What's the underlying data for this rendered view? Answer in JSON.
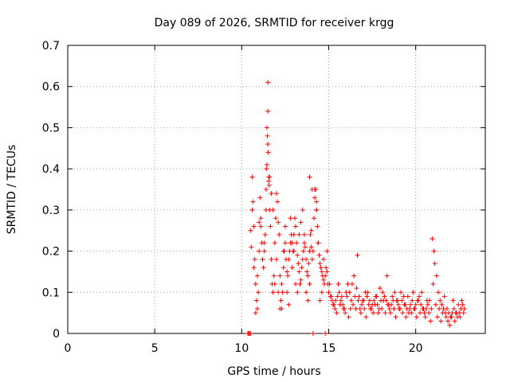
{
  "chart_data": {
    "type": "scatter",
    "title": "Day 089 of 2026, SRMTID for receiver krgg",
    "xlabel": "GPS time / hours",
    "ylabel": "SRMTID / TECUs",
    "xlim": [
      0,
      24
    ],
    "ylim": [
      0,
      0.7
    ],
    "xticks": [
      0,
      5,
      10,
      15,
      20
    ],
    "yticks": [
      0,
      0.1,
      0.2,
      0.3,
      0.4,
      0.5,
      0.6,
      0.7
    ],
    "xtick_labels": [
      "0",
      "5",
      "10",
      "15",
      "20"
    ],
    "ytick_labels": [
      "0",
      "0.1",
      "0.2",
      "0.3",
      "0.4",
      "0.5",
      "0.6",
      "0.7"
    ],
    "grid": true,
    "marker": "+",
    "color": "#ff0000",
    "series": [
      {
        "name": "SRMTID",
        "x": [
          10.35,
          10.4,
          10.45,
          10.5,
          14.1,
          14.8,
          10.5,
          10.55,
          10.6,
          10.65,
          10.7,
          10.75,
          10.8,
          10.85,
          10.9,
          10.95,
          11.0,
          11.05,
          11.1,
          11.15,
          11.2,
          11.25,
          11.3,
          11.35,
          11.4,
          11.45,
          11.5,
          11.55,
          11.6,
          11.65,
          11.7,
          11.75,
          11.8,
          11.85,
          11.9,
          11.95,
          12.0,
          12.05,
          12.1,
          12.15,
          12.2,
          12.25,
          12.3,
          12.35,
          12.4,
          12.45,
          12.5,
          12.55,
          12.6,
          12.65,
          12.7,
          12.75,
          12.8,
          12.85,
          12.9,
          12.95,
          13.0,
          13.05,
          13.1,
          13.15,
          13.2,
          13.25,
          13.3,
          13.35,
          13.4,
          13.45,
          13.5,
          13.55,
          13.6,
          13.65,
          13.7,
          13.75,
          13.8,
          13.85,
          13.9,
          13.95,
          14.0,
          14.05,
          14.1,
          14.15,
          14.2,
          14.25,
          14.3,
          14.35,
          14.4,
          14.45,
          14.5,
          14.55,
          14.6,
          14.65,
          14.7,
          14.75,
          14.8,
          14.85,
          14.9,
          14.95,
          15.0,
          15.1,
          15.2,
          15.3,
          15.4,
          15.5,
          15.6,
          15.7,
          15.8,
          15.9,
          16.0,
          16.1,
          16.2,
          16.3,
          16.4,
          16.5,
          16.6,
          16.7,
          16.8,
          16.9,
          17.0,
          17.1,
          17.2,
          17.3,
          17.4,
          17.5,
          17.6,
          17.7,
          17.8,
          17.9,
          18.0,
          18.1,
          18.2,
          18.3,
          18.4,
          18.5,
          18.6,
          18.7,
          18.8,
          18.9,
          19.0,
          19.1,
          19.2,
          19.3,
          19.4,
          19.5,
          19.6,
          19.7,
          19.8,
          19.9,
          20.0,
          20.1,
          20.2,
          20.3,
          20.4,
          20.5,
          20.6,
          20.7,
          20.8,
          20.9,
          21.0,
          21.1,
          21.2,
          21.3,
          21.4,
          21.5,
          21.6,
          21.7,
          21.8,
          21.9,
          22.0,
          22.1,
          22.2,
          22.3,
          22.4,
          22.5,
          22.6,
          22.7,
          22.8,
          10.6,
          10.7,
          10.8,
          10.9,
          11.0,
          11.1,
          11.2,
          11.3,
          11.4,
          11.5,
          11.6,
          11.7,
          11.8,
          11.9,
          12.0,
          12.1,
          12.2,
          12.3,
          12.4,
          12.5,
          12.6,
          12.7,
          12.8,
          12.9,
          13.0,
          13.1,
          13.2,
          13.3,
          13.4,
          13.5,
          13.6,
          13.7,
          13.8,
          13.9,
          14.0,
          14.2,
          14.3,
          14.4,
          14.5,
          14.6,
          14.7,
          14.9,
          15.05,
          15.15,
          15.25,
          15.35,
          15.45,
          15.55,
          15.65,
          15.75,
          15.85,
          15.95,
          16.05,
          16.15,
          16.25,
          16.35,
          16.45,
          16.55,
          16.65,
          16.75,
          16.85,
          16.95,
          17.05,
          17.15,
          17.25,
          17.35,
          17.45,
          17.55,
          17.65,
          17.75,
          17.85,
          17.95,
          18.05,
          18.15,
          18.25,
          18.35,
          18.45,
          18.55,
          18.65,
          18.75,
          18.85,
          18.95,
          19.05,
          19.15,
          19.25,
          19.35,
          19.45,
          19.55,
          19.65,
          19.75,
          19.85,
          19.95,
          20.05,
          20.15,
          20.25,
          20.35,
          20.45,
          20.55,
          20.65,
          20.75,
          20.85,
          20.95,
          21.05,
          21.15,
          21.25,
          21.35,
          21.45,
          21.55,
          21.65,
          21.75,
          21.85,
          21.95,
          22.05,
          22.15,
          22.25,
          22.35,
          22.45,
          22.55,
          22.65,
          22.75,
          11.45,
          11.5,
          11.48,
          11.52,
          11.55,
          11.42,
          11.58,
          13.9,
          14.05,
          14.3
        ],
        "y": [
          0.0,
          0.0,
          0.0,
          0.0,
          0.0,
          0.0,
          0.25,
          0.21,
          0.38,
          0.32,
          0.26,
          0.18,
          0.12,
          0.08,
          0.06,
          0.1,
          0.27,
          0.33,
          0.26,
          0.22,
          0.18,
          0.16,
          0.2,
          0.24,
          0.35,
          0.41,
          0.46,
          0.37,
          0.3,
          0.26,
          0.18,
          0.12,
          0.1,
          0.14,
          0.22,
          0.28,
          0.34,
          0.32,
          0.27,
          0.24,
          0.14,
          0.08,
          0.06,
          0.1,
          0.16,
          0.2,
          0.22,
          0.18,
          0.15,
          0.14,
          0.18,
          0.2,
          0.22,
          0.24,
          0.22,
          0.2,
          0.24,
          0.28,
          0.26,
          0.22,
          0.19,
          0.17,
          0.15,
          0.12,
          0.13,
          0.16,
          0.18,
          0.2,
          0.22,
          0.21,
          0.18,
          0.15,
          0.14,
          0.17,
          0.2,
          0.24,
          0.21,
          0.18,
          0.2,
          0.28,
          0.33,
          0.35,
          0.3,
          0.26,
          0.22,
          0.19,
          0.17,
          0.16,
          0.15,
          0.14,
          0.13,
          0.12,
          0.14,
          0.16,
          0.15,
          0.12,
          0.1,
          0.09,
          0.08,
          0.07,
          0.08,
          0.09,
          0.1,
          0.08,
          0.07,
          0.06,
          0.1,
          0.12,
          0.1,
          0.08,
          0.07,
          0.09,
          0.11,
          0.08,
          0.06,
          0.07,
          0.08,
          0.1,
          0.09,
          0.07,
          0.06,
          0.07,
          0.08,
          0.09,
          0.07,
          0.06,
          0.08,
          0.1,
          0.09,
          0.08,
          0.07,
          0.06,
          0.07,
          0.08,
          0.1,
          0.08,
          0.07,
          0.06,
          0.08,
          0.09,
          0.07,
          0.06,
          0.05,
          0.07,
          0.08,
          0.06,
          0.07,
          0.08,
          0.09,
          0.07,
          0.06,
          0.05,
          0.06,
          0.07,
          0.08,
          0.06,
          0.12,
          0.17,
          0.14,
          0.1,
          0.08,
          0.07,
          0.06,
          0.05,
          0.06,
          0.05,
          0.04,
          0.05,
          0.06,
          0.05,
          0.04,
          0.05,
          0.06,
          0.07,
          0.06,
          0.3,
          0.16,
          0.05,
          0.14,
          0.2,
          0.28,
          0.18,
          0.22,
          0.3,
          0.61,
          0.38,
          0.34,
          0.3,
          0.12,
          0.18,
          0.1,
          0.06,
          0.12,
          0.2,
          0.26,
          0.1,
          0.07,
          0.28,
          0.16,
          0.2,
          0.12,
          0.1,
          0.24,
          0.27,
          0.3,
          0.24,
          0.1,
          0.08,
          0.12,
          0.25,
          0.35,
          0.3,
          0.22,
          0.08,
          0.1,
          0.18,
          0.2,
          0.12,
          0.09,
          0.07,
          0.06,
          0.05,
          0.12,
          0.07,
          0.09,
          0.06,
          0.05,
          0.09,
          0.04,
          0.06,
          0.12,
          0.14,
          0.06,
          0.19,
          0.09,
          0.05,
          0.08,
          0.06,
          0.04,
          0.1,
          0.08,
          0.06,
          0.05,
          0.07,
          0.09,
          0.05,
          0.11,
          0.06,
          0.08,
          0.05,
          0.14,
          0.07,
          0.05,
          0.09,
          0.06,
          0.04,
          0.08,
          0.06,
          0.1,
          0.05,
          0.07,
          0.04,
          0.09,
          0.06,
          0.05,
          0.1,
          0.06,
          0.04,
          0.08,
          0.05,
          0.1,
          0.06,
          0.04,
          0.08,
          0.05,
          0.03,
          0.23,
          0.2,
          0.07,
          0.04,
          0.06,
          0.03,
          0.05,
          0.09,
          0.04,
          0.03,
          0.02,
          0.04,
          0.08,
          0.03,
          0.05,
          0.07,
          0.04,
          0.08,
          0.05,
          0.5,
          0.54,
          0.48,
          0.44,
          0.38,
          0.4,
          0.36,
          0.38,
          0.35,
          0.32
        ]
      }
    ]
  }
}
